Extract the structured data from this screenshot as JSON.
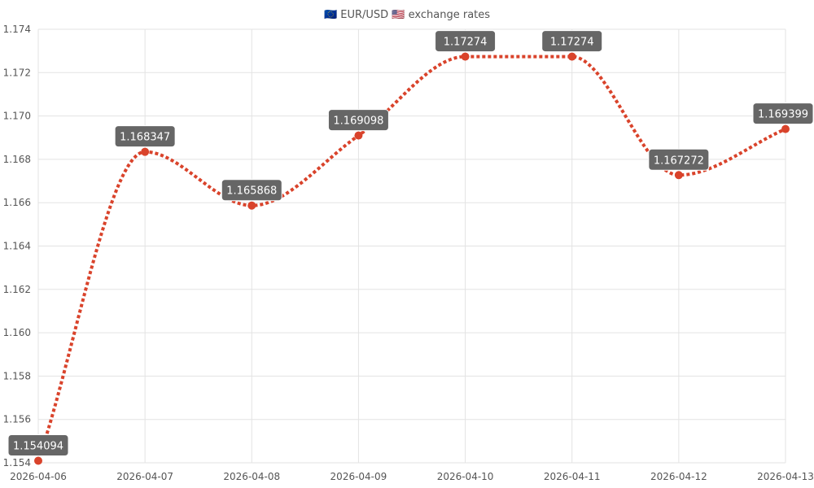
{
  "chart_data": {
    "type": "line",
    "title": "🇪🇺 EUR/USD 🇺🇸 exchange rates",
    "x": [
      "2026-04-06",
      "2026-04-07",
      "2026-04-08",
      "2026-04-09",
      "2026-04-10",
      "2026-04-11",
      "2026-04-12",
      "2026-04-13"
    ],
    "series": [
      {
        "values": [
          1.154094,
          1.168347,
          1.165868,
          1.169098,
          1.17274,
          1.17274,
          1.167272,
          1.169399
        ],
        "data_labels": [
          "1.154094",
          "1.168347",
          "1.165868",
          "1.169098",
          "1.17274",
          "1.17274",
          "1.167272",
          "1.169399"
        ]
      }
    ],
    "yticks": [
      "1.154",
      "1.156",
      "1.158",
      "1.160",
      "1.162",
      "1.164",
      "1.166",
      "1.168",
      "1.170",
      "1.172",
      "1.174"
    ],
    "ylim": [
      1.154,
      1.174
    ],
    "grid": true,
    "line_style": "dotted",
    "colors": {
      "line": "#d9432b",
      "label_bg": "#666666",
      "label_text": "#ffffff",
      "grid": "#e3e3e3"
    }
  }
}
